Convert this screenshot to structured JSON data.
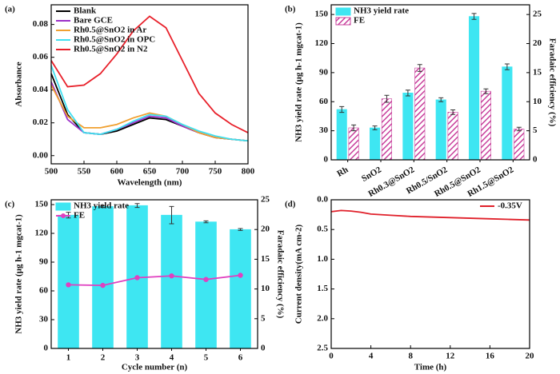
{
  "chart_data": [
    {
      "type": "line",
      "label": "(a)",
      "xlabel": "Wavelength (nm)",
      "ylabel": "Absorbance",
      "x": [
        500,
        525,
        550,
        575,
        600,
        625,
        650,
        675,
        700,
        725,
        750,
        775,
        800
      ],
      "xlim": [
        500,
        800
      ],
      "xticks": [
        500,
        550,
        600,
        650,
        700,
        750,
        800
      ],
      "ylim": [
        -0.005,
        0.092
      ],
      "yticks": [
        {
          "value": 0,
          "label": "0.00"
        },
        0.02,
        0.04,
        0.06,
        0.08
      ],
      "legend": "upper left",
      "series": [
        {
          "name": "Blank",
          "color": "#000000",
          "values": [
            0.05,
            0.025,
            0.014,
            0.013,
            0.015,
            0.019,
            0.023,
            0.022,
            0.018,
            0.014,
            0.011,
            0.01,
            0.009
          ]
        },
        {
          "name": "Bare GCE",
          "color": "#9b30c8",
          "values": [
            0.045,
            0.022,
            0.014,
            0.013,
            0.016,
            0.02,
            0.024,
            0.023,
            0.018,
            0.014,
            0.011,
            0.01,
            0.009
          ]
        },
        {
          "name": "Rh0.5@SnO2 in Ar",
          "color": "#f0a030",
          "values": [
            0.043,
            0.024,
            0.017,
            0.017,
            0.019,
            0.023,
            0.026,
            0.024,
            0.019,
            0.014,
            0.011,
            0.01,
            0.009
          ]
        },
        {
          "name": "Rh0.5@SnO2 in OPC",
          "color": "#40e0f0",
          "values": [
            0.055,
            0.028,
            0.014,
            0.013,
            0.016,
            0.021,
            0.025,
            0.024,
            0.019,
            0.015,
            0.012,
            0.01,
            0.009
          ]
        },
        {
          "name": "Rh0.5@SnO2 in N2",
          "color": "#e8202a",
          "values": [
            0.058,
            0.042,
            0.043,
            0.05,
            0.062,
            0.076,
            0.085,
            0.078,
            0.058,
            0.038,
            0.026,
            0.019,
            0.014
          ]
        }
      ]
    },
    {
      "type": "bar",
      "label": "(b)",
      "ylabel": "NH3 yield rate (μg h-1 mgcat-1)",
      "y2label": "Faradaic efficiency (%)",
      "categories": [
        "Rh",
        "SnO2",
        "Rh0.3@SnO2",
        "Rh0.5/SnO2",
        "Rh0.5@SnO2",
        "Rh1.5@SnO2"
      ],
      "ylim": [
        0,
        160
      ],
      "yticks": [
        0,
        30,
        60,
        90,
        120,
        150
      ],
      "y2lim": [
        0,
        26.67
      ],
      "y2ticks": [
        0,
        5,
        10,
        15,
        20,
        25
      ],
      "legend": "upper left",
      "series": [
        {
          "name": "NH3 yield rate",
          "type": "bar",
          "color": "#3ee6f2",
          "values": [
            52,
            33,
            69,
            62,
            148,
            96
          ],
          "errors": [
            3,
            2,
            3,
            2,
            3,
            3
          ]
        },
        {
          "name": "FE",
          "type": "bar",
          "axis": "y2",
          "hatch": true,
          "color": "#c8409c",
          "values": [
            5.5,
            10.5,
            15.8,
            8.2,
            11.8,
            5.3
          ],
          "errors": [
            0.5,
            0.6,
            0.6,
            0.4,
            0.4,
            0.3
          ]
        }
      ]
    },
    {
      "type": "bar",
      "label": "(c)",
      "xlabel": "Cycle number (n)",
      "ylabel": "NH3 yield rate (μg h-1 mgcat-1)",
      "y2label": "Faradaic efficiency (%)",
      "categories": [
        "1",
        "2",
        "3",
        "4",
        "5",
        "6"
      ],
      "ylim": [
        0,
        155
      ],
      "yticks": [
        0,
        30,
        60,
        90,
        120,
        150
      ],
      "y2lim": [
        0,
        25
      ],
      "y2ticks": [
        0,
        5,
        10,
        15,
        20,
        25
      ],
      "legend": "upper left",
      "series": [
        {
          "name": "NH3 yield rate",
          "type": "bar",
          "color": "#3ee6f2",
          "values": [
            139,
            148,
            149,
            139,
            132,
            124
          ],
          "errors": [
            3,
            1,
            2,
            9,
            1,
            1
          ]
        },
        {
          "name": "FE",
          "type": "line",
          "axis": "y2",
          "color": "#e040c0",
          "values": [
            10.7,
            10.6,
            11.9,
            12.2,
            11.6,
            12.3
          ]
        }
      ]
    },
    {
      "type": "line",
      "label": "(d)",
      "xlabel": "Time (h)",
      "ylabel": "Current density(mA cm-2)",
      "x": [
        0,
        1,
        2,
        3,
        4,
        6,
        8,
        10,
        12,
        14,
        16,
        18,
        20
      ],
      "xlim": [
        0,
        20
      ],
      "xticks": [
        0,
        4,
        8,
        12,
        16,
        20
      ],
      "ylim": [
        0,
        2.5
      ],
      "y_inverted": true,
      "yticks": [
        {
          "value": 0,
          "label": "0.0"
        },
        0.5,
        {
          "value": 1,
          "label": "1.0"
        },
        1.5,
        {
          "value": 2,
          "label": "2.0"
        },
        2.5
      ],
      "legend": "upper right",
      "series": [
        {
          "name": "-0.35V",
          "color": "#e0202a",
          "values": [
            0.2,
            0.18,
            0.19,
            0.21,
            0.24,
            0.26,
            0.28,
            0.29,
            0.3,
            0.31,
            0.32,
            0.33,
            0.34
          ]
        }
      ]
    }
  ]
}
